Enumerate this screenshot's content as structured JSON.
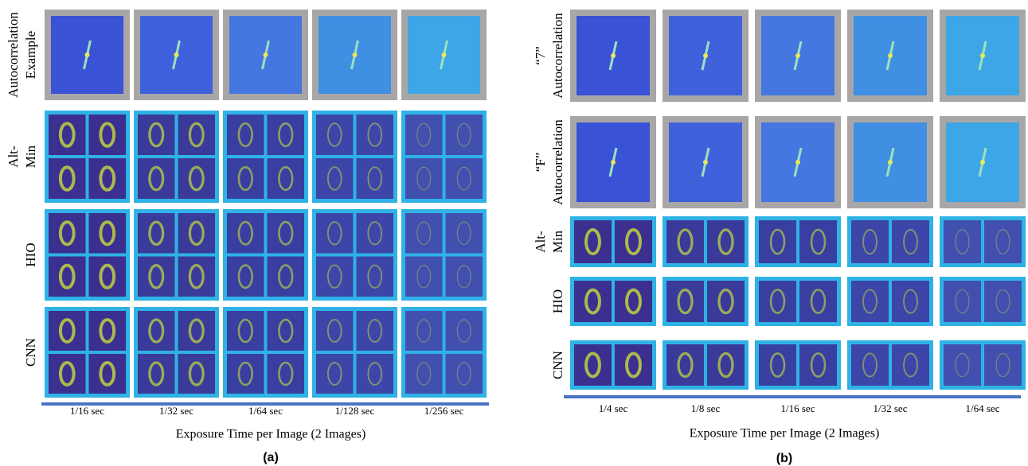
{
  "panels": [
    {
      "label": "(a)",
      "axis_label": "Exposure Time per Image (2 Images)",
      "columns": [
        "1/16 sec",
        "1/32 sec",
        "1/64 sec",
        "1/128 sec",
        "1/256 sec"
      ],
      "rows": [
        [
          "Autocorrelation",
          "Example"
        ],
        [
          "Alt-",
          "Min"
        ],
        [
          "HIO"
        ],
        [
          "CNN"
        ]
      ]
    },
    {
      "label": "(b)",
      "axis_label": "Exposure Time per Image (2 Images)",
      "columns": [
        "1/4 sec",
        "1/8 sec",
        "1/16 sec",
        "1/32 sec",
        "1/64 sec"
      ],
      "rows": [
        [
          "“7”",
          "Autocorrelation"
        ],
        [
          "“F”",
          "Autocorrelation"
        ],
        [
          "Alt-",
          "Min"
        ],
        [
          "HIO"
        ],
        [
          "CNN"
        ]
      ]
    }
  ]
}
